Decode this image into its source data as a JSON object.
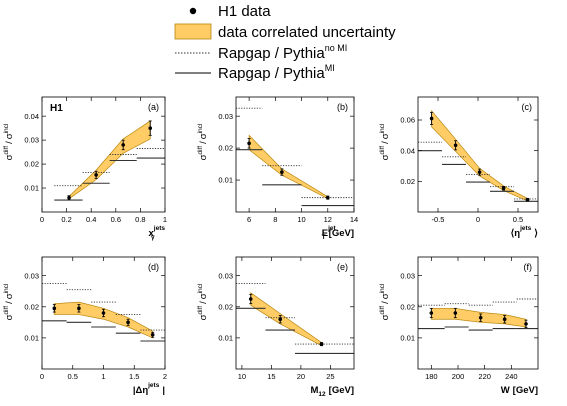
{
  "legend": {
    "entries": [
      {
        "kind": "points",
        "label": "H1 data",
        "sup": ""
      },
      {
        "kind": "band",
        "label": "data correlated uncertainty",
        "sup": ""
      },
      {
        "kind": "dotted",
        "label": "Rapgap / Pythia",
        "sup": "no MI"
      },
      {
        "kind": "solid",
        "label": "Rapgap / Pythia",
        "sup": "MI"
      }
    ]
  },
  "colors": {
    "band": "#ffcc66",
    "band_edge": "#b8860b",
    "data": "#000000",
    "mc": "#333333"
  },
  "y_label": {
    "sigma": "σ",
    "diff": "diff",
    "slash": "/",
    "incl": "incl"
  },
  "chart_data": [
    {
      "type": "line",
      "tag": "(a)",
      "extra_label": "H1",
      "xlabel_main": "x",
      "xlabel_sub": "γ",
      "xlabel_sup": "jets",
      "xlabel_unit": "",
      "xlim": [
        0,
        1
      ],
      "ylim": [
        0,
        0.048
      ],
      "xticks": [
        0,
        0.2,
        0.4,
        0.6,
        0.8,
        1
      ],
      "xtick_labels": [
        "0",
        "0.2",
        "0.4",
        "0.6",
        "0.8",
        "1"
      ],
      "yticks": [
        0.01,
        0.02,
        0.03,
        0.04
      ],
      "ytick_labels": [
        "0.01",
        "0.02",
        "0.03",
        "0.04"
      ],
      "data": {
        "x": [
          0.22,
          0.44,
          0.66,
          0.88
        ],
        "y": [
          0.006,
          0.0155,
          0.028,
          0.035
        ],
        "err": [
          0.0008,
          0.0015,
          0.002,
          0.003
        ]
      },
      "band": {
        "x": [
          0.22,
          0.44,
          0.66,
          0.88
        ],
        "lo": [
          0.0055,
          0.0135,
          0.0245,
          0.0305
        ],
        "hi": [
          0.0065,
          0.0175,
          0.0305,
          0.038
        ]
      },
      "mc_no_mi": {
        "edges": [
          0.1,
          0.33,
          0.55,
          0.77,
          1.0
        ],
        "y": [
          0.011,
          0.0165,
          0.024,
          0.0265
        ]
      },
      "mc_mi": {
        "edges": [
          0.1,
          0.33,
          0.55,
          0.77,
          1.0
        ],
        "y": [
          0.005,
          0.012,
          0.0215,
          0.0225
        ]
      }
    },
    {
      "type": "line",
      "tag": "(b)",
      "extra_label": "",
      "xlabel_main": "E",
      "xlabel_sub": "T",
      "xlabel_sup": "jet",
      "xlabel_unit": "[GeV]",
      "xlim": [
        5,
        14
      ],
      "ylim": [
        0,
        0.036
      ],
      "xticks": [
        6,
        8,
        10,
        12,
        14
      ],
      "xtick_labels": [
        "6",
        "8",
        "10",
        "12",
        "14"
      ],
      "yticks": [
        0.01,
        0.02,
        0.03
      ],
      "ytick_labels": [
        "0.01",
        "0.02",
        "0.03"
      ],
      "data": {
        "x": [
          6,
          8.5,
          12
        ],
        "y": [
          0.0215,
          0.0125,
          0.0045
        ],
        "err": [
          0.0015,
          0.001,
          0.0005
        ]
      },
      "band": {
        "x": [
          6,
          8.5,
          12
        ],
        "lo": [
          0.0195,
          0.0115,
          0.0042
        ],
        "hi": [
          0.024,
          0.0135,
          0.0048
        ]
      },
      "mc_no_mi": {
        "edges": [
          5,
          7,
          10,
          14
        ],
        "y": [
          0.0325,
          0.0145,
          0.0045
        ]
      },
      "mc_mi": {
        "edges": [
          5,
          7,
          10,
          14
        ],
        "y": [
          0.0195,
          0.0085,
          0.002
        ]
      }
    },
    {
      "type": "line",
      "tag": "(c)",
      "extra_label": "",
      "xlabel_main": "⟨η",
      "xlabel_sub": "",
      "xlabel_sup": "jets",
      "xlabel_unit": "⟩",
      "xlim": [
        -0.75,
        0.75
      ],
      "ylim": [
        0,
        0.075
      ],
      "xticks": [
        -0.5,
        0,
        0.5
      ],
      "xtick_labels": [
        "-0.5",
        "0",
        "0.5"
      ],
      "yticks": [
        0.02,
        0.04,
        0.06
      ],
      "ytick_labels": [
        "0.02",
        "0.04",
        "0.06"
      ],
      "data": {
        "x": [
          -0.58,
          -0.28,
          0.02,
          0.32,
          0.62
        ],
        "y": [
          0.061,
          0.0435,
          0.026,
          0.0155,
          0.008
        ],
        "err": [
          0.004,
          0.003,
          0.002,
          0.0012,
          0.0008
        ]
      },
      "band": {
        "x": [
          -0.58,
          -0.28,
          0.02,
          0.32,
          0.62
        ],
        "lo": [
          0.0555,
          0.0395,
          0.0235,
          0.014,
          0.0072
        ],
        "hi": [
          0.066,
          0.0475,
          0.0285,
          0.017,
          0.0088
        ]
      },
      "mc_no_mi": {
        "edges": [
          -0.75,
          -0.45,
          -0.15,
          0.15,
          0.45,
          0.75
        ],
        "y": [
          0.0455,
          0.036,
          0.0245,
          0.0165,
          0.0085
        ]
      },
      "mc_mi": {
        "edges": [
          -0.75,
          -0.45,
          -0.15,
          0.15,
          0.45,
          0.75
        ],
        "y": [
          0.04,
          0.031,
          0.0195,
          0.0135,
          0.007
        ]
      }
    },
    {
      "type": "line",
      "tag": "(d)",
      "extra_label": "",
      "xlabel_main": "|Δη",
      "xlabel_sub": "",
      "xlabel_sup": "jets",
      "xlabel_unit": "|",
      "xlim": [
        0,
        2
      ],
      "ylim": [
        0,
        0.036
      ],
      "xticks": [
        0,
        0.5,
        1,
        1.5,
        2
      ],
      "xtick_labels": [
        "0",
        "0.5",
        "1",
        "1.5",
        "2"
      ],
      "yticks": [
        0.01,
        0.02,
        0.03
      ],
      "ytick_labels": [
        "0.01",
        "0.02",
        "0.03"
      ],
      "data": {
        "x": [
          0.2,
          0.6,
          1.0,
          1.4,
          1.8
        ],
        "y": [
          0.0195,
          0.0195,
          0.018,
          0.015,
          0.011
        ],
        "err": [
          0.0012,
          0.0012,
          0.0012,
          0.001,
          0.0008
        ]
      },
      "band": {
        "x": [
          0.2,
          0.6,
          1.0,
          1.4,
          1.8
        ],
        "lo": [
          0.0175,
          0.0175,
          0.016,
          0.0135,
          0.01
        ],
        "hi": [
          0.021,
          0.0215,
          0.0195,
          0.0165,
          0.0122
        ]
      },
      "mc_no_mi": {
        "edges": [
          0,
          0.4,
          0.8,
          1.2,
          1.6,
          2.0
        ],
        "y": [
          0.0275,
          0.0255,
          0.0215,
          0.0175,
          0.0125
        ]
      },
      "mc_mi": {
        "edges": [
          0,
          0.4,
          0.8,
          1.2,
          1.6,
          2.0
        ],
        "y": [
          0.0155,
          0.015,
          0.0135,
          0.0115,
          0.009
        ]
      }
    },
    {
      "type": "line",
      "tag": "(e)",
      "extra_label": "",
      "xlabel_main": "M",
      "xlabel_sub": "12",
      "xlabel_sup": "",
      "xlabel_unit": "[GeV]",
      "xlim": [
        9,
        29
      ],
      "ylim": [
        0,
        0.036
      ],
      "xticks": [
        10,
        15,
        20,
        25
      ],
      "xtick_labels": [
        "10",
        "15",
        "20",
        "25"
      ],
      "yticks": [
        0.01,
        0.02,
        0.03
      ],
      "ytick_labels": [
        "0.01",
        "0.02",
        "0.03"
      ],
      "data": {
        "x": [
          11.5,
          16.5,
          23.5
        ],
        "y": [
          0.0225,
          0.016,
          0.008
        ],
        "err": [
          0.0015,
          0.0012,
          0.0005
        ]
      },
      "band": {
        "x": [
          11.5,
          16.5,
          23.5
        ],
        "lo": [
          0.0205,
          0.0145,
          0.0075
        ],
        "hi": [
          0.0245,
          0.0178,
          0.0085
        ]
      },
      "mc_no_mi": {
        "edges": [
          9,
          14,
          19,
          29
        ],
        "y": [
          0.0275,
          0.0165,
          0.008
        ]
      },
      "mc_mi": {
        "edges": [
          9,
          14,
          19,
          29
        ],
        "y": [
          0.0195,
          0.0125,
          0.005
        ]
      }
    },
    {
      "type": "line",
      "tag": "(f)",
      "extra_label": "",
      "xlabel_main": "W",
      "xlabel_sub": "",
      "xlabel_sup": "",
      "xlabel_unit": "[GeV]",
      "xlim": [
        170,
        260
      ],
      "ylim": [
        0,
        0.036
      ],
      "xticks": [
        180,
        200,
        220,
        240
      ],
      "xtick_labels": [
        "180",
        "200",
        "220",
        "240"
      ],
      "yticks": [
        0.01,
        0.02,
        0.03
      ],
      "ytick_labels": [
        "0.01",
        "0.02",
        "0.03"
      ],
      "data": {
        "x": [
          180,
          198,
          217,
          235,
          251
        ],
        "y": [
          0.018,
          0.018,
          0.0165,
          0.016,
          0.0145
        ],
        "err": [
          0.0015,
          0.0015,
          0.0012,
          0.0012,
          0.0012
        ]
      },
      "band": {
        "x": [
          180,
          198,
          217,
          235,
          251
        ],
        "lo": [
          0.016,
          0.016,
          0.015,
          0.0145,
          0.0135
        ],
        "hi": [
          0.0195,
          0.0195,
          0.0182,
          0.0175,
          0.016
        ]
      },
      "mc_no_mi": {
        "edges": [
          170,
          190,
          208,
          226,
          244,
          260
        ],
        "y": [
          0.0205,
          0.021,
          0.0205,
          0.0215,
          0.0225
        ]
      },
      "mc_mi": {
        "edges": [
          170,
          190,
          208,
          226,
          244,
          260
        ],
        "y": [
          0.013,
          0.0135,
          0.0125,
          0.013,
          0.013
        ]
      }
    }
  ]
}
